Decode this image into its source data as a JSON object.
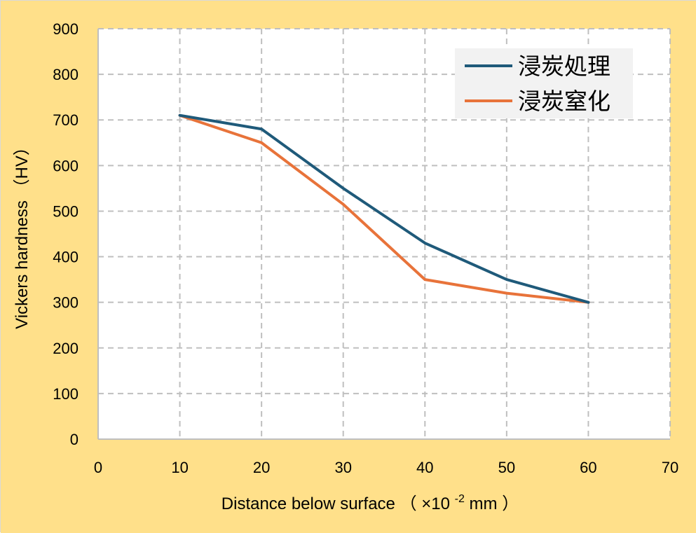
{
  "colors": {
    "background": "#FFE08A",
    "plot_area": "#FFFFFF",
    "grid": "#BFBFBF",
    "legend_box": "#F2F2F2"
  },
  "chart_data": {
    "type": "line",
    "title": "",
    "xlabel": "Distance below surface",
    "xlabel_paren_open": "（",
    "xlabel_unit_prefix": "×10",
    "xlabel_unit_exp": "-2",
    "xlabel_unit_suffix": "mm",
    "xlabel_paren_close": "）",
    "ylabel": "Vickers hardness （HV）",
    "xlim": [
      0,
      70
    ],
    "ylim": [
      0,
      900
    ],
    "xticks": [
      0,
      10,
      20,
      30,
      40,
      50,
      60,
      70
    ],
    "yticks": [
      0,
      100,
      200,
      300,
      400,
      500,
      600,
      700,
      800,
      900
    ],
    "grid": true,
    "legend_position": "top-right",
    "x": [
      10,
      20,
      30,
      40,
      50,
      60
    ],
    "series": [
      {
        "name": "浸炭処理",
        "color": "#1F5A7A",
        "values": [
          710,
          680,
          550,
          430,
          350,
          300
        ]
      },
      {
        "name": "浸炭窒化",
        "color": "#E8733A",
        "values": [
          710,
          650,
          515,
          350,
          320,
          300
        ]
      }
    ]
  }
}
